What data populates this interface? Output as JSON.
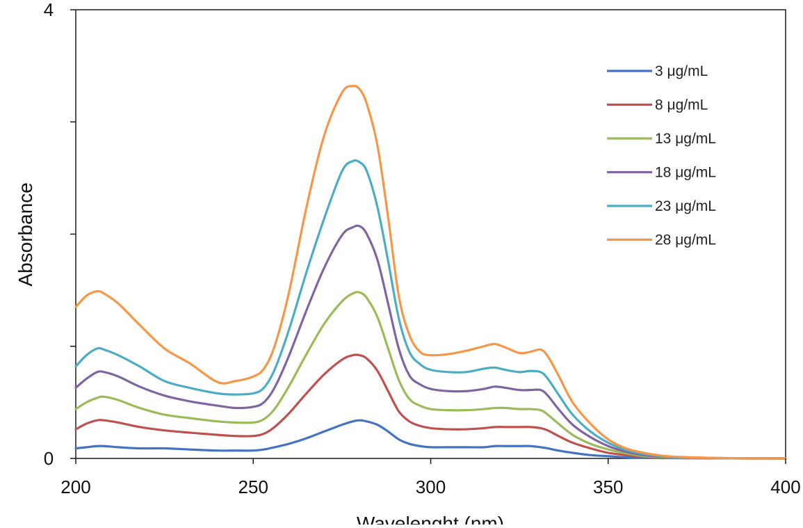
{
  "chart_data": {
    "type": "line",
    "title": "",
    "xlabel": "Wavelenght (nm)",
    "ylabel": "Absorbance",
    "xlim": [
      200,
      400
    ],
    "ylim": [
      0,
      4
    ],
    "x_ticks": [
      200,
      250,
      300,
      350,
      400
    ],
    "x_tick_labels": [
      "200",
      "250",
      "300",
      "350",
      "400"
    ],
    "y_ticks": [
      0,
      1,
      2,
      3,
      4
    ],
    "y_tick_labels": [
      "0",
      "",
      "",
      "",
      "4"
    ],
    "grid": false,
    "legend_position": "top-right",
    "x": [
      200,
      203,
      206,
      208,
      212,
      218,
      225,
      232,
      240,
      245,
      250,
      253,
      256,
      260,
      265,
      270,
      275,
      278,
      280,
      282,
      285,
      288,
      291,
      294,
      297,
      300,
      305,
      310,
      315,
      318,
      321,
      325,
      328,
      331,
      333,
      336,
      340,
      345,
      350,
      355,
      360,
      365,
      370,
      380,
      390,
      400
    ],
    "series": [
      {
        "name": "3 μg/mL",
        "color": "#4472c4",
        "values": [
          0.09,
          0.1,
          0.11,
          0.11,
          0.1,
          0.09,
          0.09,
          0.08,
          0.07,
          0.07,
          0.07,
          0.08,
          0.1,
          0.13,
          0.18,
          0.24,
          0.3,
          0.33,
          0.34,
          0.33,
          0.3,
          0.24,
          0.17,
          0.13,
          0.11,
          0.1,
          0.1,
          0.1,
          0.1,
          0.11,
          0.11,
          0.11,
          0.11,
          0.1,
          0.09,
          0.07,
          0.05,
          0.03,
          0.02,
          0.01,
          0.005,
          0.003,
          0.002,
          0.001,
          0.0,
          0.0
        ]
      },
      {
        "name": "8  μg/mL",
        "color": "#c0504d",
        "values": [
          0.26,
          0.31,
          0.34,
          0.34,
          0.32,
          0.28,
          0.25,
          0.23,
          0.21,
          0.2,
          0.2,
          0.22,
          0.28,
          0.4,
          0.58,
          0.75,
          0.88,
          0.92,
          0.92,
          0.89,
          0.78,
          0.6,
          0.42,
          0.33,
          0.29,
          0.27,
          0.26,
          0.26,
          0.27,
          0.28,
          0.28,
          0.28,
          0.28,
          0.27,
          0.25,
          0.2,
          0.14,
          0.09,
          0.05,
          0.03,
          0.015,
          0.008,
          0.004,
          0.001,
          0.0,
          0.0
        ]
      },
      {
        "name": "13  μg/mL",
        "color": "#9bbb59",
        "values": [
          0.44,
          0.5,
          0.54,
          0.55,
          0.52,
          0.45,
          0.39,
          0.36,
          0.33,
          0.32,
          0.32,
          0.35,
          0.44,
          0.64,
          0.93,
          1.2,
          1.4,
          1.47,
          1.48,
          1.43,
          1.26,
          0.98,
          0.7,
          0.53,
          0.47,
          0.44,
          0.43,
          0.43,
          0.44,
          0.45,
          0.45,
          0.44,
          0.44,
          0.43,
          0.39,
          0.31,
          0.21,
          0.13,
          0.08,
          0.045,
          0.02,
          0.01,
          0.006,
          0.002,
          0.0,
          0.0
        ]
      },
      {
        "name": "18  μg/mL",
        "color": "#8064a2",
        "values": [
          0.63,
          0.71,
          0.77,
          0.77,
          0.73,
          0.64,
          0.56,
          0.51,
          0.47,
          0.45,
          0.46,
          0.5,
          0.63,
          0.91,
          1.32,
          1.7,
          1.99,
          2.06,
          2.07,
          2.0,
          1.77,
          1.38,
          0.98,
          0.74,
          0.66,
          0.62,
          0.6,
          0.6,
          0.62,
          0.64,
          0.63,
          0.61,
          0.61,
          0.61,
          0.56,
          0.44,
          0.3,
          0.19,
          0.11,
          0.06,
          0.03,
          0.015,
          0.008,
          0.003,
          0.0,
          0.0
        ]
      },
      {
        "name": "23  μg/mL",
        "color": "#4bacc6",
        "values": [
          0.82,
          0.92,
          0.98,
          0.97,
          0.92,
          0.82,
          0.69,
          0.63,
          0.58,
          0.57,
          0.58,
          0.63,
          0.79,
          1.14,
          1.66,
          2.14,
          2.56,
          2.65,
          2.64,
          2.56,
          2.24,
          1.76,
          1.25,
          0.95,
          0.84,
          0.79,
          0.77,
          0.77,
          0.8,
          0.81,
          0.79,
          0.77,
          0.78,
          0.77,
          0.71,
          0.57,
          0.39,
          0.24,
          0.14,
          0.075,
          0.04,
          0.02,
          0.01,
          0.004,
          0.001,
          0.0
        ]
      },
      {
        "name": "28  μg/mL",
        "color": "#f79646",
        "values": [
          1.35,
          1.45,
          1.49,
          1.47,
          1.38,
          1.19,
          0.98,
          0.85,
          0.68,
          0.69,
          0.73,
          0.8,
          1.0,
          1.47,
          2.24,
          2.88,
          3.26,
          3.32,
          3.29,
          3.16,
          2.79,
          2.15,
          1.45,
          1.1,
          0.95,
          0.92,
          0.93,
          0.96,
          1.0,
          1.02,
          0.99,
          0.94,
          0.95,
          0.97,
          0.91,
          0.74,
          0.5,
          0.31,
          0.17,
          0.09,
          0.05,
          0.025,
          0.013,
          0.005,
          0.001,
          0.0
        ]
      }
    ]
  }
}
